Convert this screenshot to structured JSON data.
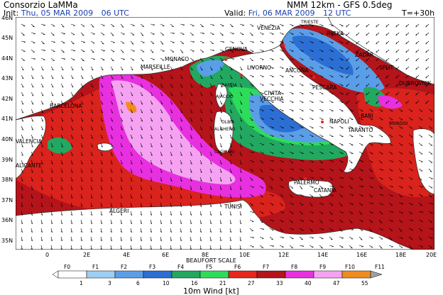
{
  "header": {
    "producer": "Consorzio LaMMa",
    "model": "NMM 12km - GFS 0.5deg",
    "init_label": "Init:",
    "init_value": "Thu, 05 MAR 2009",
    "init_time": "06 UTC",
    "valid_label": "Valid:",
    "valid_value": "Fri, 06 MAR 2009",
    "valid_time": "12 UTC",
    "lead_time": "T=+30h"
  },
  "map": {
    "lat_labels": [
      "46N",
      "45N",
      "44N",
      "43N",
      "42N",
      "41N",
      "40N",
      "39N",
      "38N",
      "37N",
      "36N",
      "35N"
    ],
    "lon_labels": [
      "0",
      "2E",
      "4E",
      "6E",
      "8E",
      "10E",
      "12E",
      "14E",
      "16E",
      "18E",
      "20E"
    ],
    "cities": [
      {
        "name": "VENEZIA"
      },
      {
        "name": "TRIESTE"
      },
      {
        "name": "RIJEKA"
      },
      {
        "name": "ZADAR"
      },
      {
        "name": "SPLIT"
      },
      {
        "name": "DUBROVNIK"
      },
      {
        "name": "GENOVA"
      },
      {
        "name": "MONACO"
      },
      {
        "name": "MARSEILLE"
      },
      {
        "name": "LIVORNO"
      },
      {
        "name": "ANCONA"
      },
      {
        "name": "PESCARA"
      },
      {
        "name": "CIVITA"
      },
      {
        "name": "VECCHIA"
      },
      {
        "name": "BASTIA"
      },
      {
        "name": "AJACCIO"
      },
      {
        "name": "BARCELONA"
      },
      {
        "name": "OLBIA"
      },
      {
        "name": "ALGHERO"
      },
      {
        "name": "NAPOLI"
      },
      {
        "name": "BARI"
      },
      {
        "name": "BRINDISI"
      },
      {
        "name": "TARANTO"
      },
      {
        "name": "VALENCIA"
      },
      {
        "name": "CAGLIARI"
      },
      {
        "name": "ALICANTE"
      },
      {
        "name": "PALERMO"
      },
      {
        "name": "CATANIA"
      },
      {
        "name": "ALGERI"
      },
      {
        "name": "TUNISI"
      }
    ]
  },
  "legend": {
    "title": "BEAUFORT SCALE",
    "unit_label": "10m Wind [kt]",
    "forces": [
      "F0",
      "F1",
      "F2",
      "F3",
      "F4",
      "F5",
      "F6",
      "F7",
      "F8",
      "F9",
      "F10",
      "F11"
    ],
    "thresholds": [
      "1",
      "3",
      "6",
      "10",
      "16",
      "21",
      "27",
      "33",
      "40",
      "47",
      "55"
    ],
    "colors": [
      "#ffffff",
      "#9dcdf2",
      "#5a9ee8",
      "#2c6fd4",
      "#22a860",
      "#2ddc5a",
      "#e8261e",
      "#b4141a",
      "#e830e0",
      "#f6a2f2",
      "#f08c1e",
      "#a0a0a0"
    ]
  }
}
